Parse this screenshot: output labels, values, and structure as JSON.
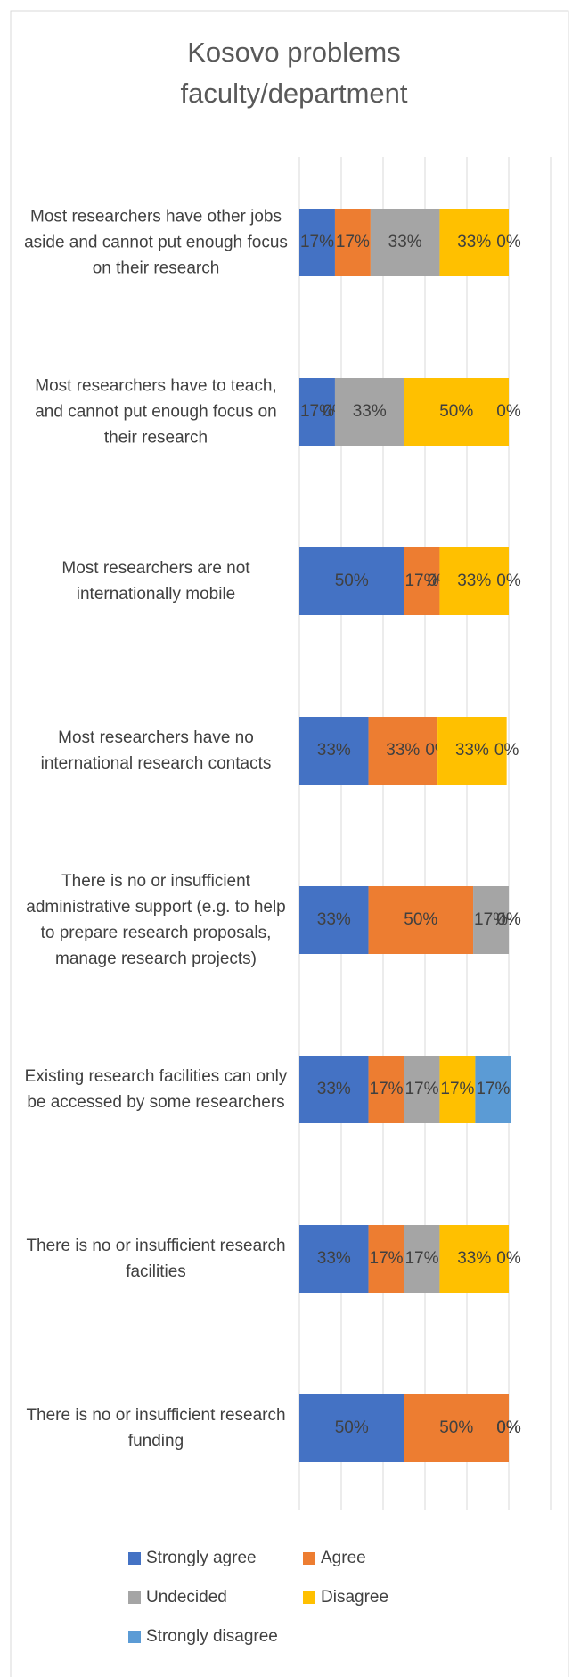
{
  "chart_data": {
    "type": "stacked_barh",
    "title": "Kosovo problems faculty/department",
    "categories": [
      "Most researchers have other jobs aside and cannot put enough focus on their research",
      "Most researchers have to teach, and cannot put enough focus on their research",
      "Most researchers are not internationally mobile",
      "Most researchers have no international research contacts",
      "There is no or insufficient administrative support (e.g. to help to prepare research proposals, manage research projects)",
      "Existing research facilities can only be accessed by some researchers",
      "There is no or insufficient research facilities",
      "There is no or insufficient research funding"
    ],
    "series": [
      {
        "name": "Strongly agree",
        "color": "#4472c4",
        "values": [
          17,
          17,
          50,
          33,
          33,
          33,
          33,
          50
        ],
        "value_labels": [
          "17%",
          "17%",
          "50%",
          "33%",
          "33%",
          "33%",
          "33%",
          "50%"
        ]
      },
      {
        "name": "Agree",
        "color": "#ed7d31",
        "values": [
          17,
          0,
          17,
          33,
          50,
          17,
          17,
          50
        ],
        "value_labels": [
          "17%",
          "0%",
          "17%",
          "33%",
          "50%",
          "17%",
          "17%",
          "50%"
        ]
      },
      {
        "name": "Undecided",
        "color": "#a5a5a5",
        "values": [
          33,
          33,
          0,
          0,
          17,
          17,
          17,
          0
        ],
        "value_labels": [
          "33%",
          "33%",
          "0%",
          "0%",
          "17%",
          "17%",
          "17%",
          "0%"
        ]
      },
      {
        "name": "Disagree",
        "color": "#ffc000",
        "values": [
          33,
          50,
          33,
          33,
          0,
          17,
          33,
          0
        ],
        "value_labels": [
          "33%",
          "50%",
          "33%",
          "33%",
          "0%",
          "17%",
          "33%",
          "0%"
        ]
      },
      {
        "name": "Strongly disagree",
        "color": "#5b9bd5",
        "values": [
          0,
          0,
          0,
          0,
          0,
          17,
          0,
          0
        ],
        "value_labels": [
          "0%",
          "0%",
          "0%",
          "0%",
          "0%",
          "17%",
          "0%",
          "0%"
        ]
      }
    ],
    "xlim": [
      0,
      120
    ],
    "xticks": [
      0,
      20,
      40,
      60,
      80,
      100,
      120
    ],
    "grid": true
  }
}
